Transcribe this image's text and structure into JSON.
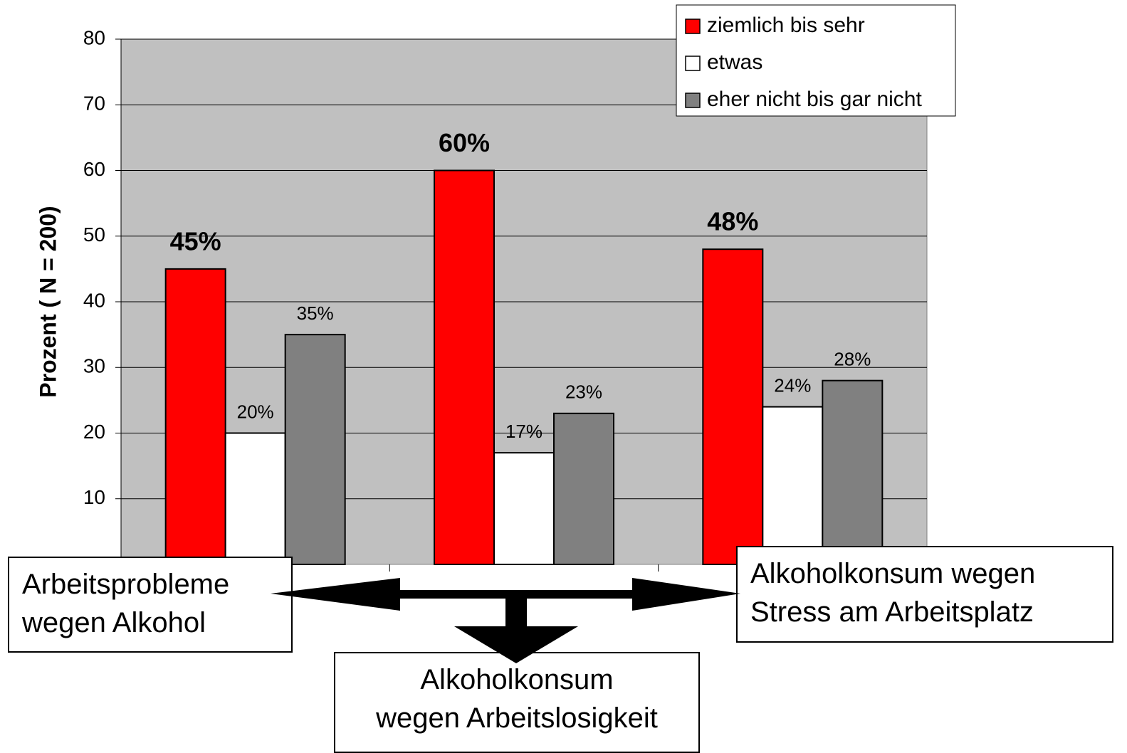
{
  "chart_data": {
    "type": "bar",
    "y_label": "Prozent ( N = 200)",
    "categories": [
      "Arbeitsprobleme\nwegen Alkohol",
      "Alkoholkonsum\nwegen Arbeitslosigkeit",
      "Alkoholkonsum wegen\nStress am Arbeitsplatz"
    ],
    "series": [
      {
        "name": "ziemlich bis sehr",
        "color": "#ff0000",
        "values": [
          45,
          60,
          48
        ],
        "value_labels": [
          "45%",
          "60%",
          "48%"
        ]
      },
      {
        "name": "etwas",
        "color": "#ffffff",
        "values": [
          20,
          17,
          24
        ],
        "value_labels": [
          "20%",
          "17%",
          "24%"
        ]
      },
      {
        "name": "eher nicht bis gar nicht",
        "color": "#808080",
        "values": [
          35,
          23,
          28
        ],
        "value_labels": [
          "35%",
          "23%",
          "28%"
        ]
      }
    ],
    "ylim": [
      0,
      80
    ],
    "yticks": [
      10,
      20,
      30,
      40,
      50,
      60,
      70,
      80
    ],
    "grid": true,
    "legend": "top-right"
  }
}
